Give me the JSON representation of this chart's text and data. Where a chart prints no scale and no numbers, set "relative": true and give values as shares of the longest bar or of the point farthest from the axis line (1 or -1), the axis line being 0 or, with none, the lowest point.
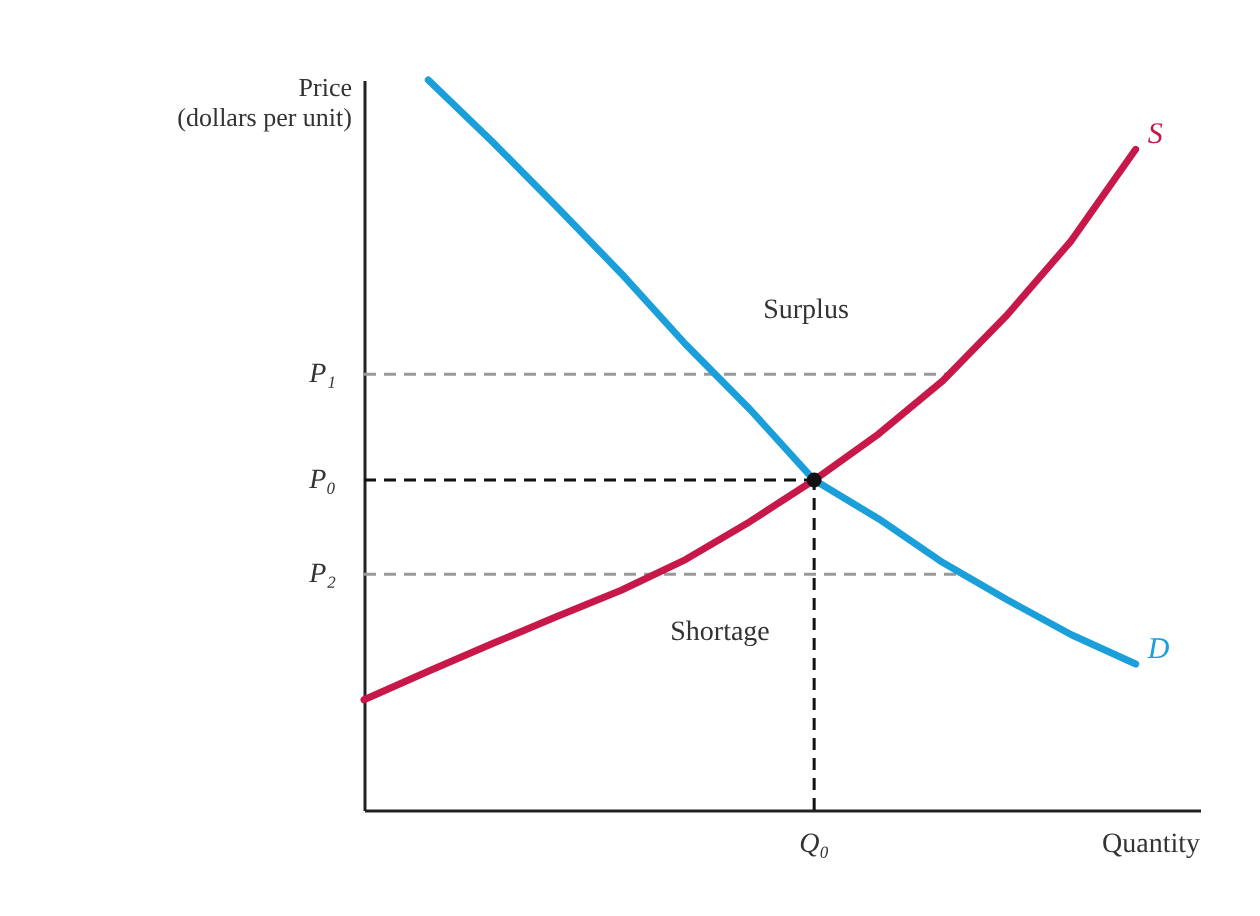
{
  "chart_data": {
    "type": "line",
    "relative": true,
    "xlabel": "Quantity",
    "ylabel": "Price\n(dollars per unit)",
    "tick_labels": false,
    "categories": [
      null,
      null,
      null,
      null,
      null,
      null,
      null,
      null,
      null,
      null,
      null,
      null,
      null,
      null
    ],
    "series": [
      {
        "name": "D",
        "color": "#1a9fdb",
        "values": [
          null,
          1.0,
          0.915,
          0.826,
          0.735,
          0.638,
          0.549,
          0.452,
          0.399,
          0.339,
          0.288,
          0.24,
          0.2,
          null
        ]
      },
      {
        "name": "S",
        "color": "#c8184a",
        "values": [
          0.151,
          0.19,
          0.228,
          0.265,
          0.301,
          0.343,
          0.395,
          0.452,
          0.515,
          0.588,
          0.678,
          0.78,
          0.905,
          null
        ]
      }
    ],
    "ref_lines": [
      {
        "axis": "y",
        "value": 0.597,
        "label": "P₁",
        "color": "#999999",
        "line_style": "dashed"
      },
      {
        "axis": "y",
        "value": 0.452,
        "label": "P₀",
        "color": "#111111",
        "line_style": "dashed"
      },
      {
        "axis": "y",
        "value": 0.323,
        "label": "P₂",
        "color": "#999999",
        "line_style": "dashed"
      },
      {
        "axis": "x",
        "value": null,
        "label": "Q₀",
        "color": "#111111",
        "line_style": "dashed"
      }
    ],
    "annotations": [
      "Surplus",
      "Shortage"
    ]
  }
}
